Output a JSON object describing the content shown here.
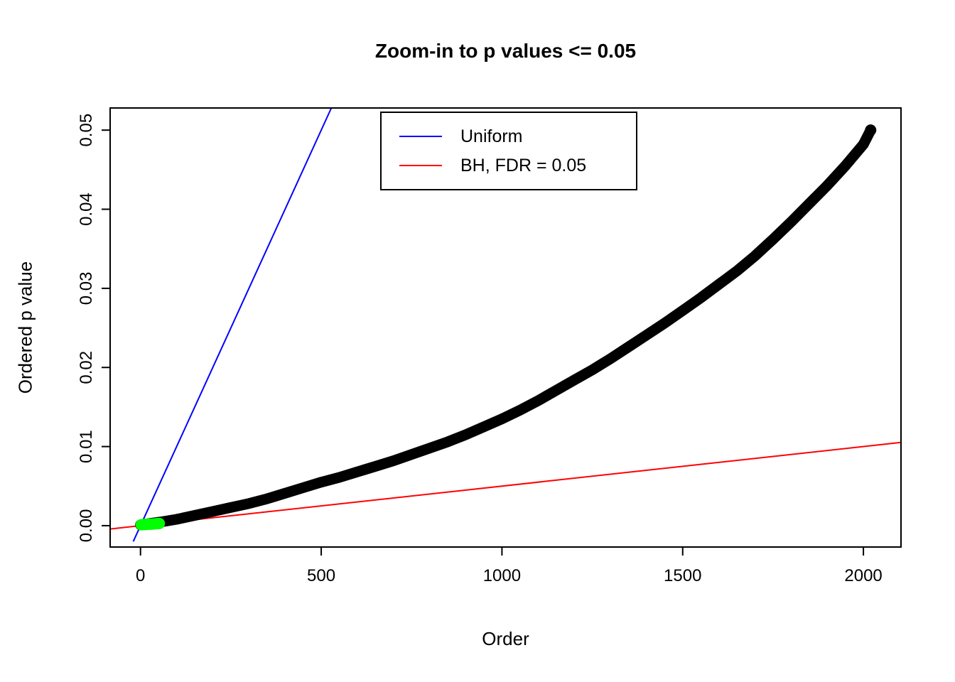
{
  "chart_data": {
    "type": "scatter",
    "title": "Zoom-in to p values <= 0.05",
    "xlabel": "Order",
    "ylabel": "Ordered p value",
    "xlim": [
      -84,
      2104
    ],
    "ylim": [
      -0.0027,
      0.0528
    ],
    "xticks": [
      0,
      500,
      1000,
      1500,
      2000
    ],
    "yticks": [
      0,
      0.01,
      0.02,
      0.03,
      0.04,
      0.05
    ],
    "ytick_labels": [
      "0.00",
      "0.01",
      "0.02",
      "0.03",
      "0.04",
      "0.05"
    ],
    "grid": false,
    "background": "#ffffff",
    "frame_color": "#000000",
    "legend": {
      "position": "top-center",
      "entries": [
        {
          "label": "Uniform",
          "color": "#0000ff"
        },
        {
          "label": "BH, FDR = 0.05",
          "color": "#ff0000"
        }
      ]
    },
    "series": [
      {
        "name": "uniform-line",
        "type": "line",
        "color": "#0000ff",
        "points": [
          [
            -20,
            -0.002
          ],
          [
            528,
            0.0528
          ]
        ]
      },
      {
        "name": "bh-line",
        "type": "line",
        "color": "#ff0000",
        "points": [
          [
            -84,
            -0.00042
          ],
          [
            2104,
            0.01052
          ]
        ]
      },
      {
        "name": "ordered-p-values",
        "type": "curve",
        "color": "#000000",
        "marker": "filled-circle",
        "points": [
          [
            0,
            0.0001
          ],
          [
            30,
            0.0003
          ],
          [
            60,
            0.0005
          ],
          [
            100,
            0.0008
          ],
          [
            150,
            0.0013
          ],
          [
            200,
            0.0018
          ],
          [
            250,
            0.0023
          ],
          [
            300,
            0.0028
          ],
          [
            350,
            0.0034
          ],
          [
            400,
            0.0041
          ],
          [
            450,
            0.0048
          ],
          [
            500,
            0.0055
          ],
          [
            550,
            0.0061
          ],
          [
            600,
            0.0068
          ],
          [
            650,
            0.0075
          ],
          [
            700,
            0.0082
          ],
          [
            750,
            0.009
          ],
          [
            800,
            0.0098
          ],
          [
            850,
            0.0106
          ],
          [
            900,
            0.0115
          ],
          [
            950,
            0.0125
          ],
          [
            1000,
            0.0135
          ],
          [
            1050,
            0.0146
          ],
          [
            1100,
            0.0158
          ],
          [
            1150,
            0.0171
          ],
          [
            1200,
            0.0184
          ],
          [
            1250,
            0.0197
          ],
          [
            1300,
            0.0211
          ],
          [
            1350,
            0.0226
          ],
          [
            1400,
            0.0241
          ],
          [
            1450,
            0.0256
          ],
          [
            1500,
            0.0272
          ],
          [
            1550,
            0.0288
          ],
          [
            1600,
            0.0305
          ],
          [
            1650,
            0.0322
          ],
          [
            1700,
            0.0341
          ],
          [
            1750,
            0.0362
          ],
          [
            1800,
            0.0384
          ],
          [
            1850,
            0.0407
          ],
          [
            1900,
            0.043
          ],
          [
            1950,
            0.0455
          ],
          [
            2000,
            0.0482
          ],
          [
            2020,
            0.05
          ]
        ]
      },
      {
        "name": "significant-points",
        "type": "points",
        "color": "#00ff00",
        "points": [
          [
            2,
            0.00012
          ],
          [
            7,
            0.00014
          ],
          [
            12,
            0.00015
          ],
          [
            17,
            0.00016
          ],
          [
            22,
            0.00018
          ],
          [
            27,
            0.00019
          ],
          [
            32,
            0.0002
          ],
          [
            37,
            0.00022
          ],
          [
            42,
            0.00024
          ],
          [
            47,
            0.00026
          ],
          [
            52,
            0.00028
          ]
        ]
      }
    ]
  }
}
